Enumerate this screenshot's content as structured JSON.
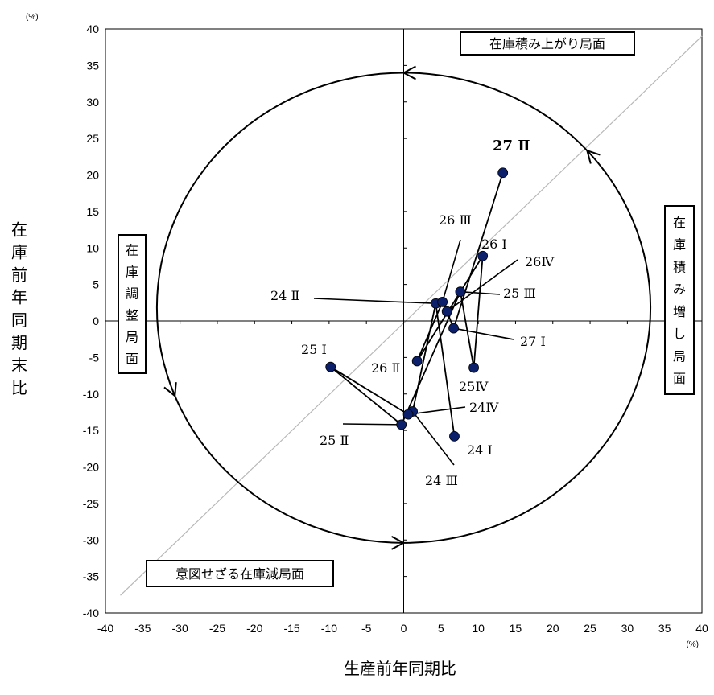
{
  "chart_data": {
    "type": "scatter",
    "x_unit": "(%)",
    "y_unit": "(%)",
    "xlabel": "生産前年同期比",
    "ylabel": "在庫前年同期末比",
    "xlim": [
      -40,
      40
    ],
    "ylim": [
      -40,
      40
    ],
    "x_ticks": [
      "-40",
      "-35",
      "-30",
      "-25",
      "-20",
      "-15",
      "-10",
      "-5",
      "0",
      "5",
      "10",
      "15",
      "20",
      "25",
      "30",
      "35",
      "40"
    ],
    "y_ticks": [
      "40",
      "35",
      "30",
      "25",
      "20",
      "15",
      "10",
      "5",
      "0",
      "-5",
      "-10",
      "-15",
      "-20",
      "-25",
      "-30",
      "-35",
      "-40"
    ],
    "grid": false,
    "series_color": "#0b1f6b",
    "points": [
      {
        "label": "24 Ⅰ",
        "x": 6.8,
        "y": -15.8,
        "bold": false
      },
      {
        "label": "24 Ⅱ",
        "x": 4.3,
        "y": 2.4,
        "bold": false
      },
      {
        "label": "24 Ⅲ",
        "x": 1.2,
        "y": -12.4,
        "bold": false
      },
      {
        "label": "24Ⅳ",
        "x": 0.6,
        "y": -12.8,
        "bold": false
      },
      {
        "label": "25 Ⅰ",
        "x": -9.8,
        "y": -6.3,
        "bold": false
      },
      {
        "label": "25 Ⅱ",
        "x": -0.3,
        "y": -14.2,
        "bold": false
      },
      {
        "label": "25 Ⅲ",
        "x": 7.6,
        "y": 4.0,
        "bold": false
      },
      {
        "label": "25Ⅳ",
        "x": 9.4,
        "y": -6.4,
        "bold": false
      },
      {
        "label": "26 Ⅰ",
        "x": 10.6,
        "y": 8.9,
        "bold": false
      },
      {
        "label": "26 Ⅱ",
        "x": 1.8,
        "y": -5.5,
        "bold": false
      },
      {
        "label": "26 Ⅲ",
        "x": 5.2,
        "y": 2.6,
        "bold": false
      },
      {
        "label": "26Ⅳ",
        "x": 5.8,
        "y": 1.3,
        "bold": false
      },
      {
        "label": "27 Ⅰ",
        "x": 6.7,
        "y": -1.0,
        "bold": false
      },
      {
        "label": "27 Ⅱ",
        "x": 13.3,
        "y": 20.3,
        "bold": true
      }
    ],
    "path_order": [
      "24 Ⅰ",
      "24 Ⅱ",
      "24 Ⅲ",
      "24Ⅳ",
      "25 Ⅰ",
      "25 Ⅱ",
      "25 Ⅲ",
      "25Ⅳ",
      "26 Ⅰ",
      "26 Ⅱ",
      "26 Ⅲ",
      "26Ⅳ",
      "27 Ⅰ",
      "27 Ⅱ"
    ],
    "phases": {
      "top": "在庫積み上がり局面",
      "right": "在庫積み増し局面",
      "left": "在庫調整局面",
      "bottom_left": "意図せざる在庫減局面"
    }
  }
}
